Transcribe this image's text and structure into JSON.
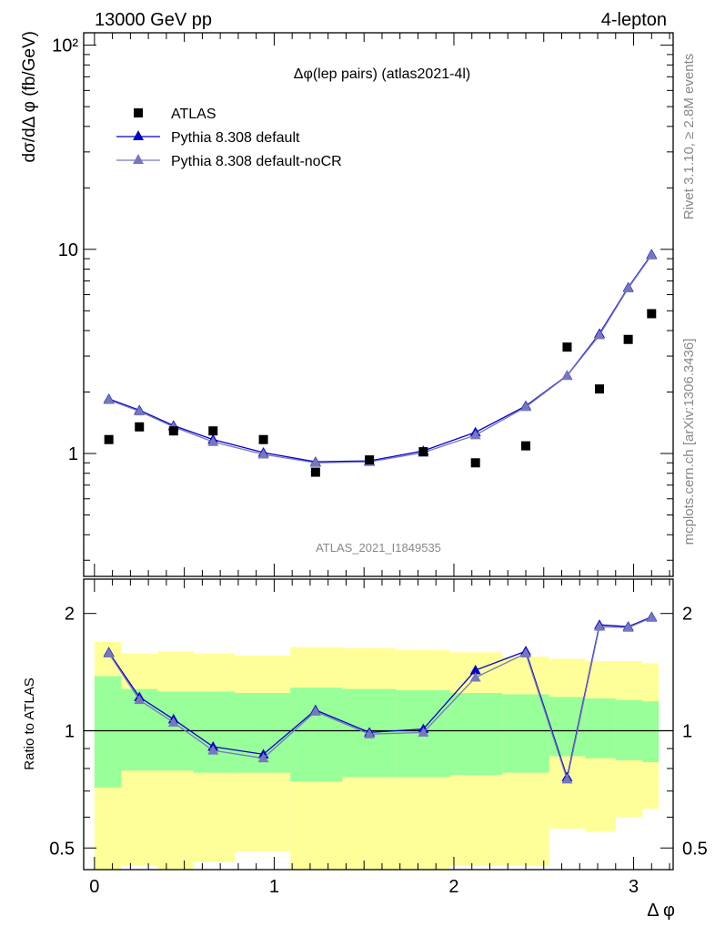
{
  "header": {
    "left": "13000 GeV pp",
    "right": "4-lepton"
  },
  "side_labels": {
    "rivet": "Rivet 3.1.10, ≥ 2.8M events",
    "mcplots": "mcplots.cern.ch [arXiv:1306.3436]"
  },
  "colors": {
    "atlas": "#000000",
    "pythia_default": "#0000cc",
    "pythia_nocr": "#7777bb",
    "band_inner": "#99ff99",
    "band_outer": "#ffff99",
    "watermark": "#888888"
  },
  "chart_data": [
    {
      "type": "scatter",
      "title": "Δφ(lep pairs) (atlas2021-4l)",
      "watermark": "ATLAS_2021_I1849535",
      "ylabel": "dσ/dΔ φ (fb/GeV)",
      "yscale": "log",
      "ylim": [
        0.25,
        115
      ],
      "xlim": [
        -0.06,
        3.22
      ],
      "yticks": [
        {
          "value": 1,
          "label": "1"
        },
        {
          "value": 10,
          "label": "10"
        },
        {
          "value": 100,
          "label": "10²"
        }
      ],
      "legend": [
        "ATLAS",
        "Pythia 8.308 default",
        "Pythia 8.308 default-noCR"
      ],
      "legend_position": "top-left",
      "x": [
        0.08,
        0.25,
        0.44,
        0.66,
        0.94,
        1.23,
        1.53,
        1.83,
        2.12,
        2.4,
        2.63,
        2.81,
        2.97,
        3.1
      ],
      "series": [
        {
          "name": "ATLAS",
          "values": [
            1.17,
            1.35,
            1.29,
            1.29,
            1.17,
            0.81,
            0.93,
            1.02,
            0.9,
            1.09,
            3.32,
            2.07,
            3.62,
            4.84
          ]
        },
        {
          "name": "Pythia 8.308 default",
          "values": [
            1.85,
            1.63,
            1.37,
            1.17,
            1.01,
            0.91,
            0.92,
            1.03,
            1.27,
            1.71,
            2.41,
            3.86,
            6.51,
            9.45
          ]
        },
        {
          "name": "Pythia 8.308 default-noCR",
          "values": [
            1.83,
            1.61,
            1.35,
            1.14,
            0.99,
            0.9,
            0.91,
            1.01,
            1.23,
            1.69,
            2.4,
            3.8,
            6.45,
            9.35
          ]
        }
      ]
    },
    {
      "type": "line",
      "ylabel": "Ratio to ATLAS",
      "xlabel": "Δ φ",
      "yscale": "log",
      "ylim": [
        0.44,
        2.45
      ],
      "xlim": [
        -0.06,
        3.22
      ],
      "yticks": [
        {
          "value": 0.5,
          "label": "0.5"
        },
        {
          "value": 1,
          "label": "1"
        },
        {
          "value": 2,
          "label": "2"
        }
      ],
      "xticks": [
        {
          "value": 0,
          "label": "0"
        },
        {
          "value": 1,
          "label": "1"
        },
        {
          "value": 2,
          "label": "2"
        },
        {
          "value": 3,
          "label": "3"
        }
      ],
      "reference_line": 1,
      "bin_edges": [
        0.0,
        0.15,
        0.35,
        0.55,
        0.78,
        1.09,
        1.38,
        1.68,
        1.98,
        2.27,
        2.53,
        2.73,
        2.9,
        3.05,
        3.14
      ],
      "band_inner": {
        "low": [
          0.715,
          0.79,
          0.79,
          0.78,
          0.78,
          0.74,
          0.76,
          0.76,
          0.77,
          0.78,
          0.86,
          0.85,
          0.84,
          0.83
        ],
        "high": [
          1.38,
          1.28,
          1.26,
          1.26,
          1.25,
          1.29,
          1.28,
          1.27,
          1.25,
          1.24,
          1.22,
          1.21,
          1.2,
          1.19
        ]
      },
      "band_outer": {
        "low": [
          0.35,
          0.45,
          0.42,
          0.46,
          0.49,
          0.35,
          0.41,
          0.43,
          0.45,
          0.45,
          0.56,
          0.55,
          0.6,
          0.63
        ],
        "high": [
          1.69,
          1.58,
          1.6,
          1.58,
          1.56,
          1.64,
          1.63,
          1.61,
          1.59,
          1.55,
          1.53,
          1.51,
          1.51,
          1.49
        ]
      },
      "x": [
        0.08,
        0.25,
        0.44,
        0.66,
        0.94,
        1.23,
        1.53,
        1.83,
        2.12,
        2.4,
        2.63,
        2.81,
        2.97,
        3.1
      ],
      "series": [
        {
          "name": "Pythia 8.308 default",
          "values": [
            1.59,
            1.22,
            1.07,
            0.91,
            0.87,
            1.13,
            0.99,
            1.01,
            1.43,
            1.6,
            0.76,
            1.87,
            1.85,
            1.96
          ]
        },
        {
          "name": "Pythia 8.308 default-noCR",
          "values": [
            1.58,
            1.2,
            1.05,
            0.89,
            0.85,
            1.12,
            0.98,
            0.99,
            1.37,
            1.58,
            0.75,
            1.85,
            1.84,
            1.95
          ]
        }
      ]
    }
  ]
}
